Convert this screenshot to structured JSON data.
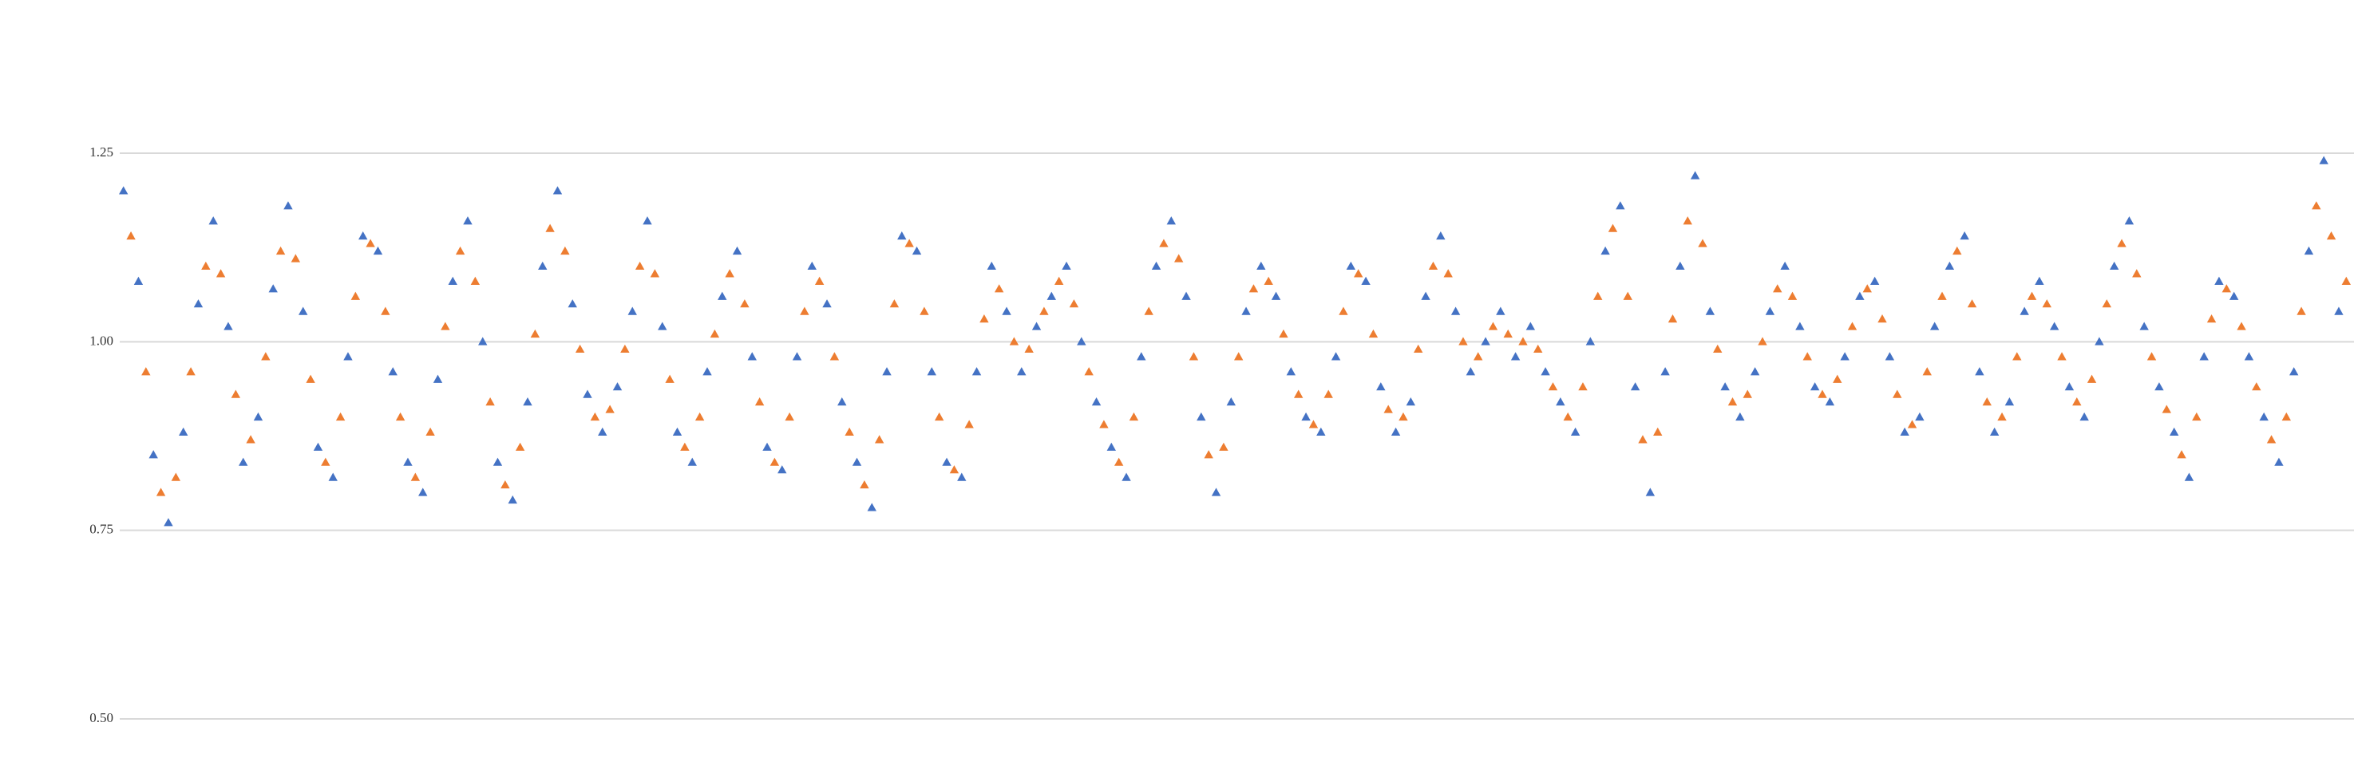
{
  "chart_data": {
    "type": "scatter",
    "marker": "triangle",
    "ylim": [
      0.5,
      1.45
    ],
    "yticks": [
      {
        "value": 0.5,
        "label": "0.50"
      },
      {
        "value": 0.75,
        "label": "0.75"
      },
      {
        "value": 1.0,
        "label": "1.00"
      },
      {
        "value": 1.25,
        "label": "1.25"
      }
    ],
    "grid": true,
    "series": [
      {
        "color": "#4472c4",
        "values": [
          1.2,
          1.08,
          0.85,
          0.76,
          0.88,
          1.05,
          1.16,
          1.02,
          0.84,
          0.9,
          1.07,
          1.18,
          1.04,
          0.86,
          0.82,
          0.98,
          1.14,
          1.12,
          0.96,
          0.84,
          0.8,
          0.95,
          1.08,
          1.16,
          1.0,
          0.84,
          0.79,
          0.92,
          1.1,
          1.2,
          1.05,
          0.93,
          0.88,
          0.94,
          1.04,
          1.16,
          1.02,
          0.88,
          0.84,
          0.96,
          1.06,
          1.12,
          0.98,
          0.86,
          0.83,
          0.98,
          1.1,
          1.05,
          0.92,
          0.84,
          0.78,
          0.96,
          1.14,
          1.12,
          0.96,
          0.84,
          0.82,
          0.96,
          1.1,
          1.04,
          0.96,
          1.02,
          1.06,
          1.1,
          1.0,
          0.92,
          0.86,
          0.82,
          0.98,
          1.1,
          1.16,
          1.06,
          0.9,
          0.8,
          0.92,
          1.04,
          1.1,
          1.06,
          0.96,
          0.9,
          0.88,
          0.98,
          1.1,
          1.08,
          0.94,
          0.88,
          0.92,
          1.06,
          1.14,
          1.04,
          0.96,
          1.0,
          1.04,
          0.98,
          1.02,
          0.96,
          0.92,
          0.88,
          1.0,
          1.12,
          1.18,
          0.94,
          0.8,
          0.96,
          1.1,
          1.22,
          1.04,
          0.94,
          0.9,
          0.96,
          1.04,
          1.1,
          1.02,
          0.94,
          0.92,
          0.98,
          1.06,
          1.08,
          0.98,
          0.88,
          0.9,
          1.02,
          1.1,
          1.14,
          0.96,
          0.88,
          0.92,
          1.04,
          1.08,
          1.02,
          0.94,
          0.9,
          1.0,
          1.1,
          1.16,
          1.02,
          0.94,
          0.88,
          0.82,
          0.98,
          1.08,
          1.06,
          0.98,
          0.9,
          0.84,
          0.96,
          1.12,
          1.24,
          1.04
        ]
      },
      {
        "color": "#ed7d31",
        "values": [
          1.14,
          0.96,
          0.8,
          0.82,
          0.96,
          1.1,
          1.09,
          0.93,
          0.87,
          0.98,
          1.12,
          1.11,
          0.95,
          0.84,
          0.9,
          1.06,
          1.13,
          1.04,
          0.9,
          0.82,
          0.88,
          1.02,
          1.12,
          1.08,
          0.92,
          0.81,
          0.86,
          1.01,
          1.15,
          1.12,
          0.99,
          0.9,
          0.91,
          0.99,
          1.1,
          1.09,
          0.95,
          0.86,
          0.9,
          1.01,
          1.09,
          1.05,
          0.92,
          0.84,
          0.9,
          1.04,
          1.08,
          0.98,
          0.88,
          0.81,
          0.87,
          1.05,
          1.13,
          1.04,
          0.9,
          0.83,
          0.89,
          1.03,
          1.07,
          1.0,
          0.99,
          1.04,
          1.08,
          1.05,
          0.96,
          0.89,
          0.84,
          0.9,
          1.04,
          1.13,
          1.11,
          0.98,
          0.85,
          0.86,
          0.98,
          1.07,
          1.08,
          1.01,
          0.93,
          0.89,
          0.93,
          1.04,
          1.09,
          1.01,
          0.91,
          0.9,
          0.99,
          1.1,
          1.09,
          1.0,
          0.98,
          1.02,
          1.01,
          1.0,
          0.99,
          0.94,
          0.9,
          0.94,
          1.06,
          1.15,
          1.06,
          0.87,
          0.88,
          1.03,
          1.16,
          1.13,
          0.99,
          0.92,
          0.93,
          1.0,
          1.07,
          1.06,
          0.98,
          0.93,
          0.95,
          1.02,
          1.07,
          1.03,
          0.93,
          0.89,
          0.96,
          1.06,
          1.12,
          1.05,
          0.92,
          0.9,
          0.98,
          1.06,
          1.05,
          0.98,
          0.92,
          0.95,
          1.05,
          1.13,
          1.09,
          0.98,
          0.91,
          0.85,
          0.9,
          1.03,
          1.07,
          1.02,
          0.94,
          0.87,
          0.9,
          1.04,
          1.18,
          1.14,
          1.08
        ]
      }
    ]
  }
}
